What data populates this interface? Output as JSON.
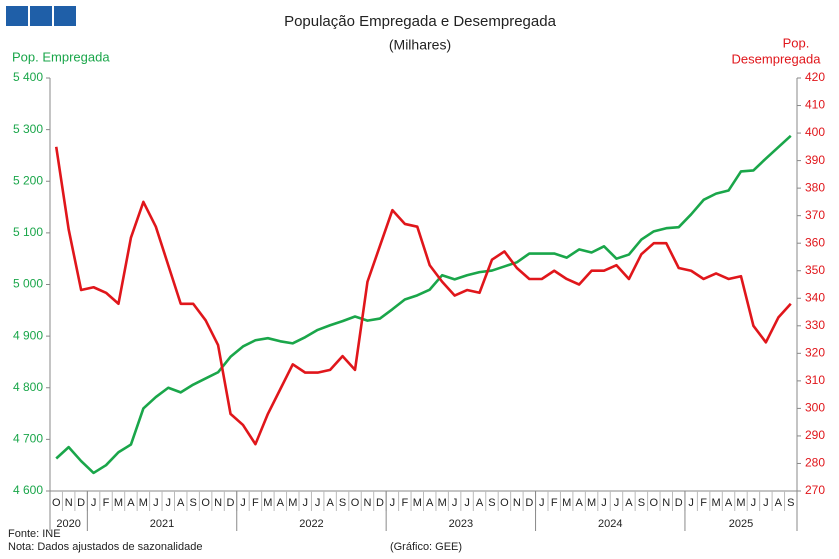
{
  "chart_data": {
    "type": "line",
    "title": "População Empregada e Desempregada",
    "subtitle": "(Milhares)",
    "ylabel": "Pop. Empregada",
    "y2label": [
      "Pop.",
      "Desempregada"
    ],
    "categories": [
      "O",
      "N",
      "D",
      "J",
      "F",
      "M",
      "A",
      "M",
      "J",
      "J",
      "A",
      "S",
      "O",
      "N",
      "D",
      "J",
      "F",
      "M",
      "A",
      "M",
      "J",
      "J",
      "A",
      "S",
      "O",
      "N",
      "D",
      "J",
      "F",
      "M",
      "A",
      "M",
      "J",
      "J",
      "A",
      "S",
      "O",
      "N",
      "D",
      "J",
      "F",
      "M",
      "A",
      "M",
      "J",
      "J",
      "A",
      "S",
      "O",
      "N",
      "D",
      "J",
      "F",
      "M",
      "A",
      "M",
      "J",
      "J",
      "A",
      "S"
    ],
    "years": [
      "2020",
      "2021",
      "2022",
      "2023",
      "2024",
      "2025"
    ],
    "series": [
      {
        "name": "Pop. Empregada",
        "color": "#1aa64a",
        "axis": "y",
        "values": [
          4663,
          4685,
          4658,
          4635,
          4650,
          4675,
          4690,
          4760,
          4782,
          4800,
          4791,
          4806,
          4818,
          4830,
          4860,
          4880,
          4892,
          4896,
          4890,
          4886,
          4898,
          4912,
          4921,
          4929,
          4938,
          4930,
          4934,
          4952,
          4971,
          4979,
          4990,
          5018,
          5010,
          5018,
          5024,
          5027,
          5035,
          5043,
          5060,
          5060,
          5060,
          5052,
          5068,
          5062,
          5074,
          5050,
          5058,
          5087,
          5103,
          5109,
          5111,
          5136,
          5164,
          5176,
          5182,
          5219,
          5221,
          5244,
          5266,
          5288
        ]
      },
      {
        "name": "Pop. Desempregada",
        "color": "#e0161b",
        "axis": "y2",
        "values": [
          395,
          365,
          343,
          344,
          342,
          338,
          362,
          375,
          366,
          352,
          338,
          338,
          332,
          323,
          298,
          294,
          287,
          298,
          307,
          316,
          313,
          313,
          314,
          319,
          314,
          346,
          359,
          372,
          367,
          366,
          352,
          346,
          341,
          343,
          342,
          354,
          357,
          351,
          347,
          347,
          350,
          347,
          345,
          350,
          350,
          352,
          347,
          356,
          360,
          360,
          351,
          350,
          347,
          349,
          347,
          348,
          330,
          324,
          333,
          338
        ]
      }
    ],
    "ylim": [
      4600,
      5400
    ],
    "yticks": [
      {
        "value": 4600,
        "label": "4 600"
      },
      {
        "value": 4700,
        "label": "4 700"
      },
      {
        "value": 4800,
        "label": "4 800"
      },
      {
        "value": 4900,
        "label": "4 900"
      },
      {
        "value": 5000,
        "label": "5 000"
      },
      {
        "value": 5100,
        "label": "5 100"
      },
      {
        "value": 5200,
        "label": "5 200"
      },
      {
        "value": 5300,
        "label": "5 300"
      },
      {
        "value": 5400,
        "label": "5 400"
      }
    ],
    "y2lim": [
      270,
      420
    ],
    "y2ticks": [
      270,
      280,
      290,
      300,
      310,
      320,
      330,
      340,
      350,
      360,
      370,
      380,
      390,
      400,
      410,
      420
    ],
    "source": "Fonte: INE",
    "note": "Nota: Dados ajustados de sazonalidade",
    "credit": "(Gráfico: GEE)"
  }
}
